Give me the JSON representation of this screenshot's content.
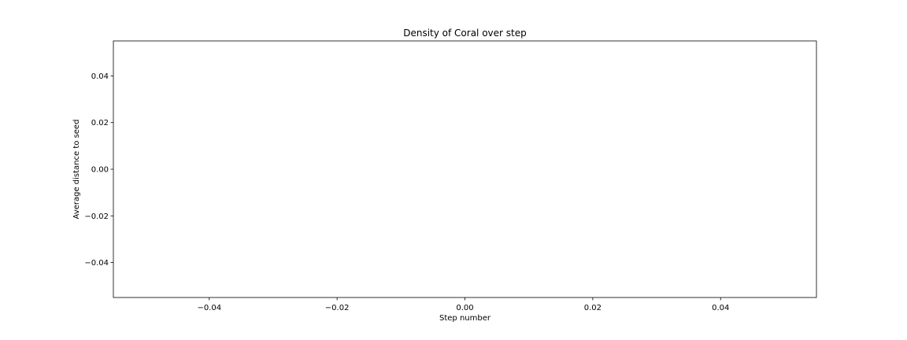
{
  "chart_data": {
    "type": "line",
    "title": "Density of Coral over step",
    "xlabel": "Step number",
    "ylabel": "Average distance to seed",
    "xlim": [
      -0.055,
      0.055
    ],
    "ylim": [
      -0.055,
      0.055
    ],
    "x_ticks": [
      -0.04,
      -0.02,
      0.0,
      0.02,
      0.04
    ],
    "x_tick_labels": [
      "−0.04",
      "−0.02",
      "0.00",
      "0.02",
      "0.04"
    ],
    "y_ticks": [
      -0.04,
      -0.02,
      0.0,
      0.02,
      0.04
    ],
    "y_tick_labels": [
      "−0.04",
      "−0.02",
      "0.00",
      "0.02",
      "0.04"
    ],
    "series": [],
    "grid": false,
    "legend": "none"
  }
}
